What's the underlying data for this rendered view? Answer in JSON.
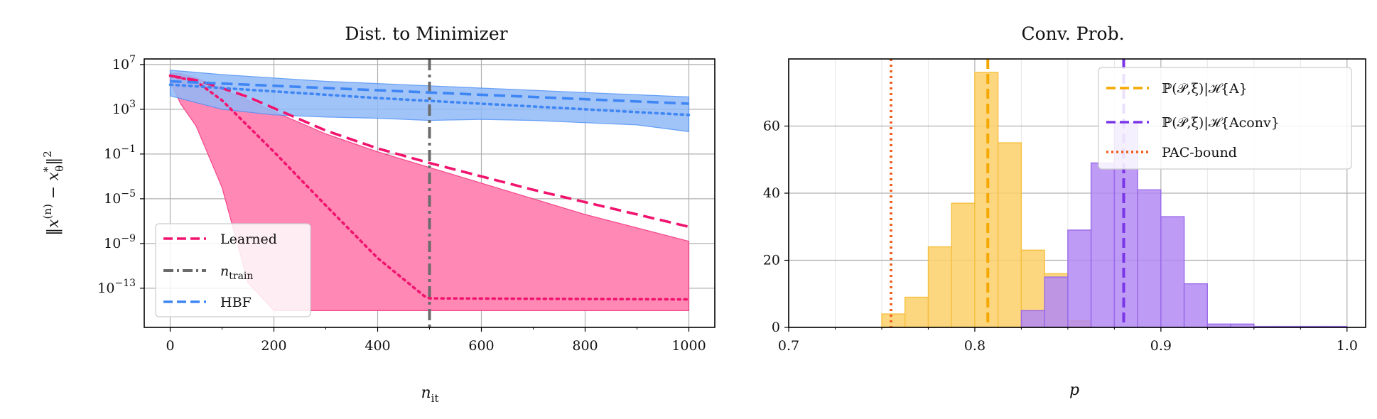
{
  "colors": {
    "learned": "#f0146e",
    "learned_fill": "#ff88b4",
    "ntrain": "#6b6b6b",
    "hbf": "#3f86f5",
    "hbf_fill": "#8fb9f7",
    "hist_a": "#fdd06a",
    "hist_a_edge": "#f5c040",
    "hist_conv": "#b38af3",
    "hist_conv_edge": "#9a6ae8",
    "line_a": "#f5a800",
    "line_conv": "#7a35e8",
    "pac": "#f05a18",
    "grid": "#b0b0b0"
  },
  "chart_data": [
    {
      "type": "line",
      "title": "Dist. to Minimizer",
      "xlabel": "n_it",
      "ylabel": "||x^(n) − x*_θ||²",
      "yscale": "log",
      "xlim": [
        -50,
        1050
      ],
      "ylim_log10": [
        -16.5,
        7.5
      ],
      "xticks": [
        0,
        200,
        400,
        600,
        800,
        1000
      ],
      "xtick_labels": [
        "0",
        "200",
        "400",
        "600",
        "800",
        "1000"
      ],
      "yticks_log10": [
        7,
        3,
        -1,
        -5,
        -9,
        -13
      ],
      "ytick_labels": [
        {
          "base": "10",
          "exp": "7"
        },
        {
          "base": "10",
          "exp": "3"
        },
        {
          "base": "10",
          "exp": "−1"
        },
        {
          "base": "10",
          "exp": "−5"
        },
        {
          "base": "10",
          "exp": "−9"
        },
        {
          "base": "10",
          "exp": "−13"
        }
      ],
      "grid": true,
      "legend_position": "lower-left",
      "legend": [
        {
          "label": "Learned",
          "sub": "",
          "style": "dashed",
          "color": "learned"
        },
        {
          "label": "n",
          "sub": "train",
          "style": "dashdot",
          "color": "ntrain"
        },
        {
          "label": "HBF",
          "sub": "",
          "style": "dashed",
          "color": "hbf"
        }
      ],
      "vline_x": 500,
      "series": [
        {
          "name": "Learned",
          "style": "dashed",
          "x": [
            0,
            50,
            100,
            150,
            200,
            300,
            400,
            500,
            600,
            700,
            800,
            900,
            1000
          ],
          "log10_y": [
            6.0,
            5.6,
            4.9,
            4.1,
            3.1,
            1.1,
            -0.5,
            -1.8,
            -3.0,
            -4.2,
            -5.3,
            -6.4,
            -7.5
          ]
        },
        {
          "name": "",
          "style": "dotted",
          "color": "learned",
          "x": [
            0,
            50,
            100,
            200,
            300,
            400,
            490,
            500,
            1000
          ],
          "log10_y": [
            6.0,
            5.5,
            3.8,
            -0.8,
            -5.6,
            -10.3,
            -13.7,
            -13.9,
            -14.0
          ]
        },
        {
          "name": "",
          "style": "fill",
          "color": "learned",
          "x": [
            0,
            20,
            50,
            100,
            150,
            200,
            300,
            400,
            500,
            600,
            700,
            800,
            900,
            1000
          ],
          "log10_upper": [
            6.2,
            6.2,
            5.8,
            4.8,
            3.8,
            2.8,
            0.8,
            -0.8,
            -2.2,
            -3.6,
            -5.0,
            -6.4,
            -7.6,
            -8.8
          ],
          "log10_lower": [
            5.5,
            3.5,
            1.5,
            -4.0,
            -12.5,
            -15.0,
            -15.0,
            -15.0,
            -15.0,
            -15.0,
            -15.0,
            -15.0,
            -15.0,
            -15.0
          ]
        },
        {
          "name": "HBF",
          "style": "dashed",
          "x": [
            0,
            200,
            400,
            600,
            800,
            1000
          ],
          "log10_y": [
            5.5,
            5.1,
            4.7,
            4.3,
            3.9,
            3.5
          ]
        },
        {
          "name": "",
          "style": "dotted",
          "color": "hbf",
          "x": [
            0,
            200,
            400,
            600,
            800,
            1000
          ],
          "log10_y": [
            5.2,
            4.6,
            4.0,
            3.5,
            3.0,
            2.5
          ]
        },
        {
          "name": "",
          "style": "fill",
          "color": "hbf",
          "x": [
            0,
            100,
            200,
            300,
            400,
            500,
            600,
            700,
            800,
            900,
            1000
          ],
          "log10_upper": [
            6.5,
            6.1,
            5.8,
            5.5,
            5.3,
            5.1,
            4.9,
            4.7,
            4.5,
            4.3,
            4.1
          ],
          "log10_lower": [
            4.2,
            3.0,
            2.5,
            2.3,
            2.2,
            2.0,
            2.1,
            2.0,
            1.8,
            1.6,
            1.0
          ]
        }
      ]
    },
    {
      "type": "histogram",
      "title": "Conv. Prob.",
      "xlabel": "p",
      "ylabel": "",
      "xlim": [
        0.7,
        1.01
      ],
      "ylim": [
        0,
        80
      ],
      "xticks": [
        0.7,
        0.8,
        0.9,
        1.0
      ],
      "xtick_labels": [
        "0.7",
        "0.8",
        "0.9",
        "1.0"
      ],
      "yticks": [
        0,
        20,
        40,
        60
      ],
      "ytick_labels": [
        "0",
        "20",
        "40",
        "60"
      ],
      "grid": true,
      "legend_position": "top-right",
      "legend": [
        {
          "label": "ℙ(𝒫,ξ)|ℋ{A}",
          "style": "dashed",
          "color": "line_a"
        },
        {
          "label": "ℙ(𝒫,ξ)|ℋ{Aconv}",
          "style": "dashed",
          "color": "line_conv"
        },
        {
          "label": "PAC-bound",
          "style": "dotted",
          "color": "pac"
        }
      ],
      "bin_width": 0.0125,
      "series": [
        {
          "name": "ℙ(𝒫,ξ)|ℋ{A}",
          "bin_starts": [
            0.75,
            0.7625,
            0.775,
            0.7875,
            0.8,
            0.8125,
            0.825,
            0.8375,
            0.85
          ],
          "counts": [
            4,
            9,
            24,
            37,
            76,
            55,
            23,
            16,
            2
          ],
          "mean_line": 0.807
        },
        {
          "name": "ℙ(𝒫,ξ)|ℋ{Aconv}",
          "bin_starts": [
            0.825,
            0.8375,
            0.85,
            0.8625,
            0.875,
            0.8875,
            0.9,
            0.9125,
            0.925,
            0.9375,
            0.95,
            0.9625,
            0.975,
            0.9875
          ],
          "counts": [
            5,
            15,
            29,
            49,
            61,
            41,
            33,
            13,
            1,
            1,
            0.3,
            0.3,
            0.3,
            0.3
          ],
          "mean_line": 0.88
        }
      ],
      "pac_bound": 0.755
    }
  ]
}
